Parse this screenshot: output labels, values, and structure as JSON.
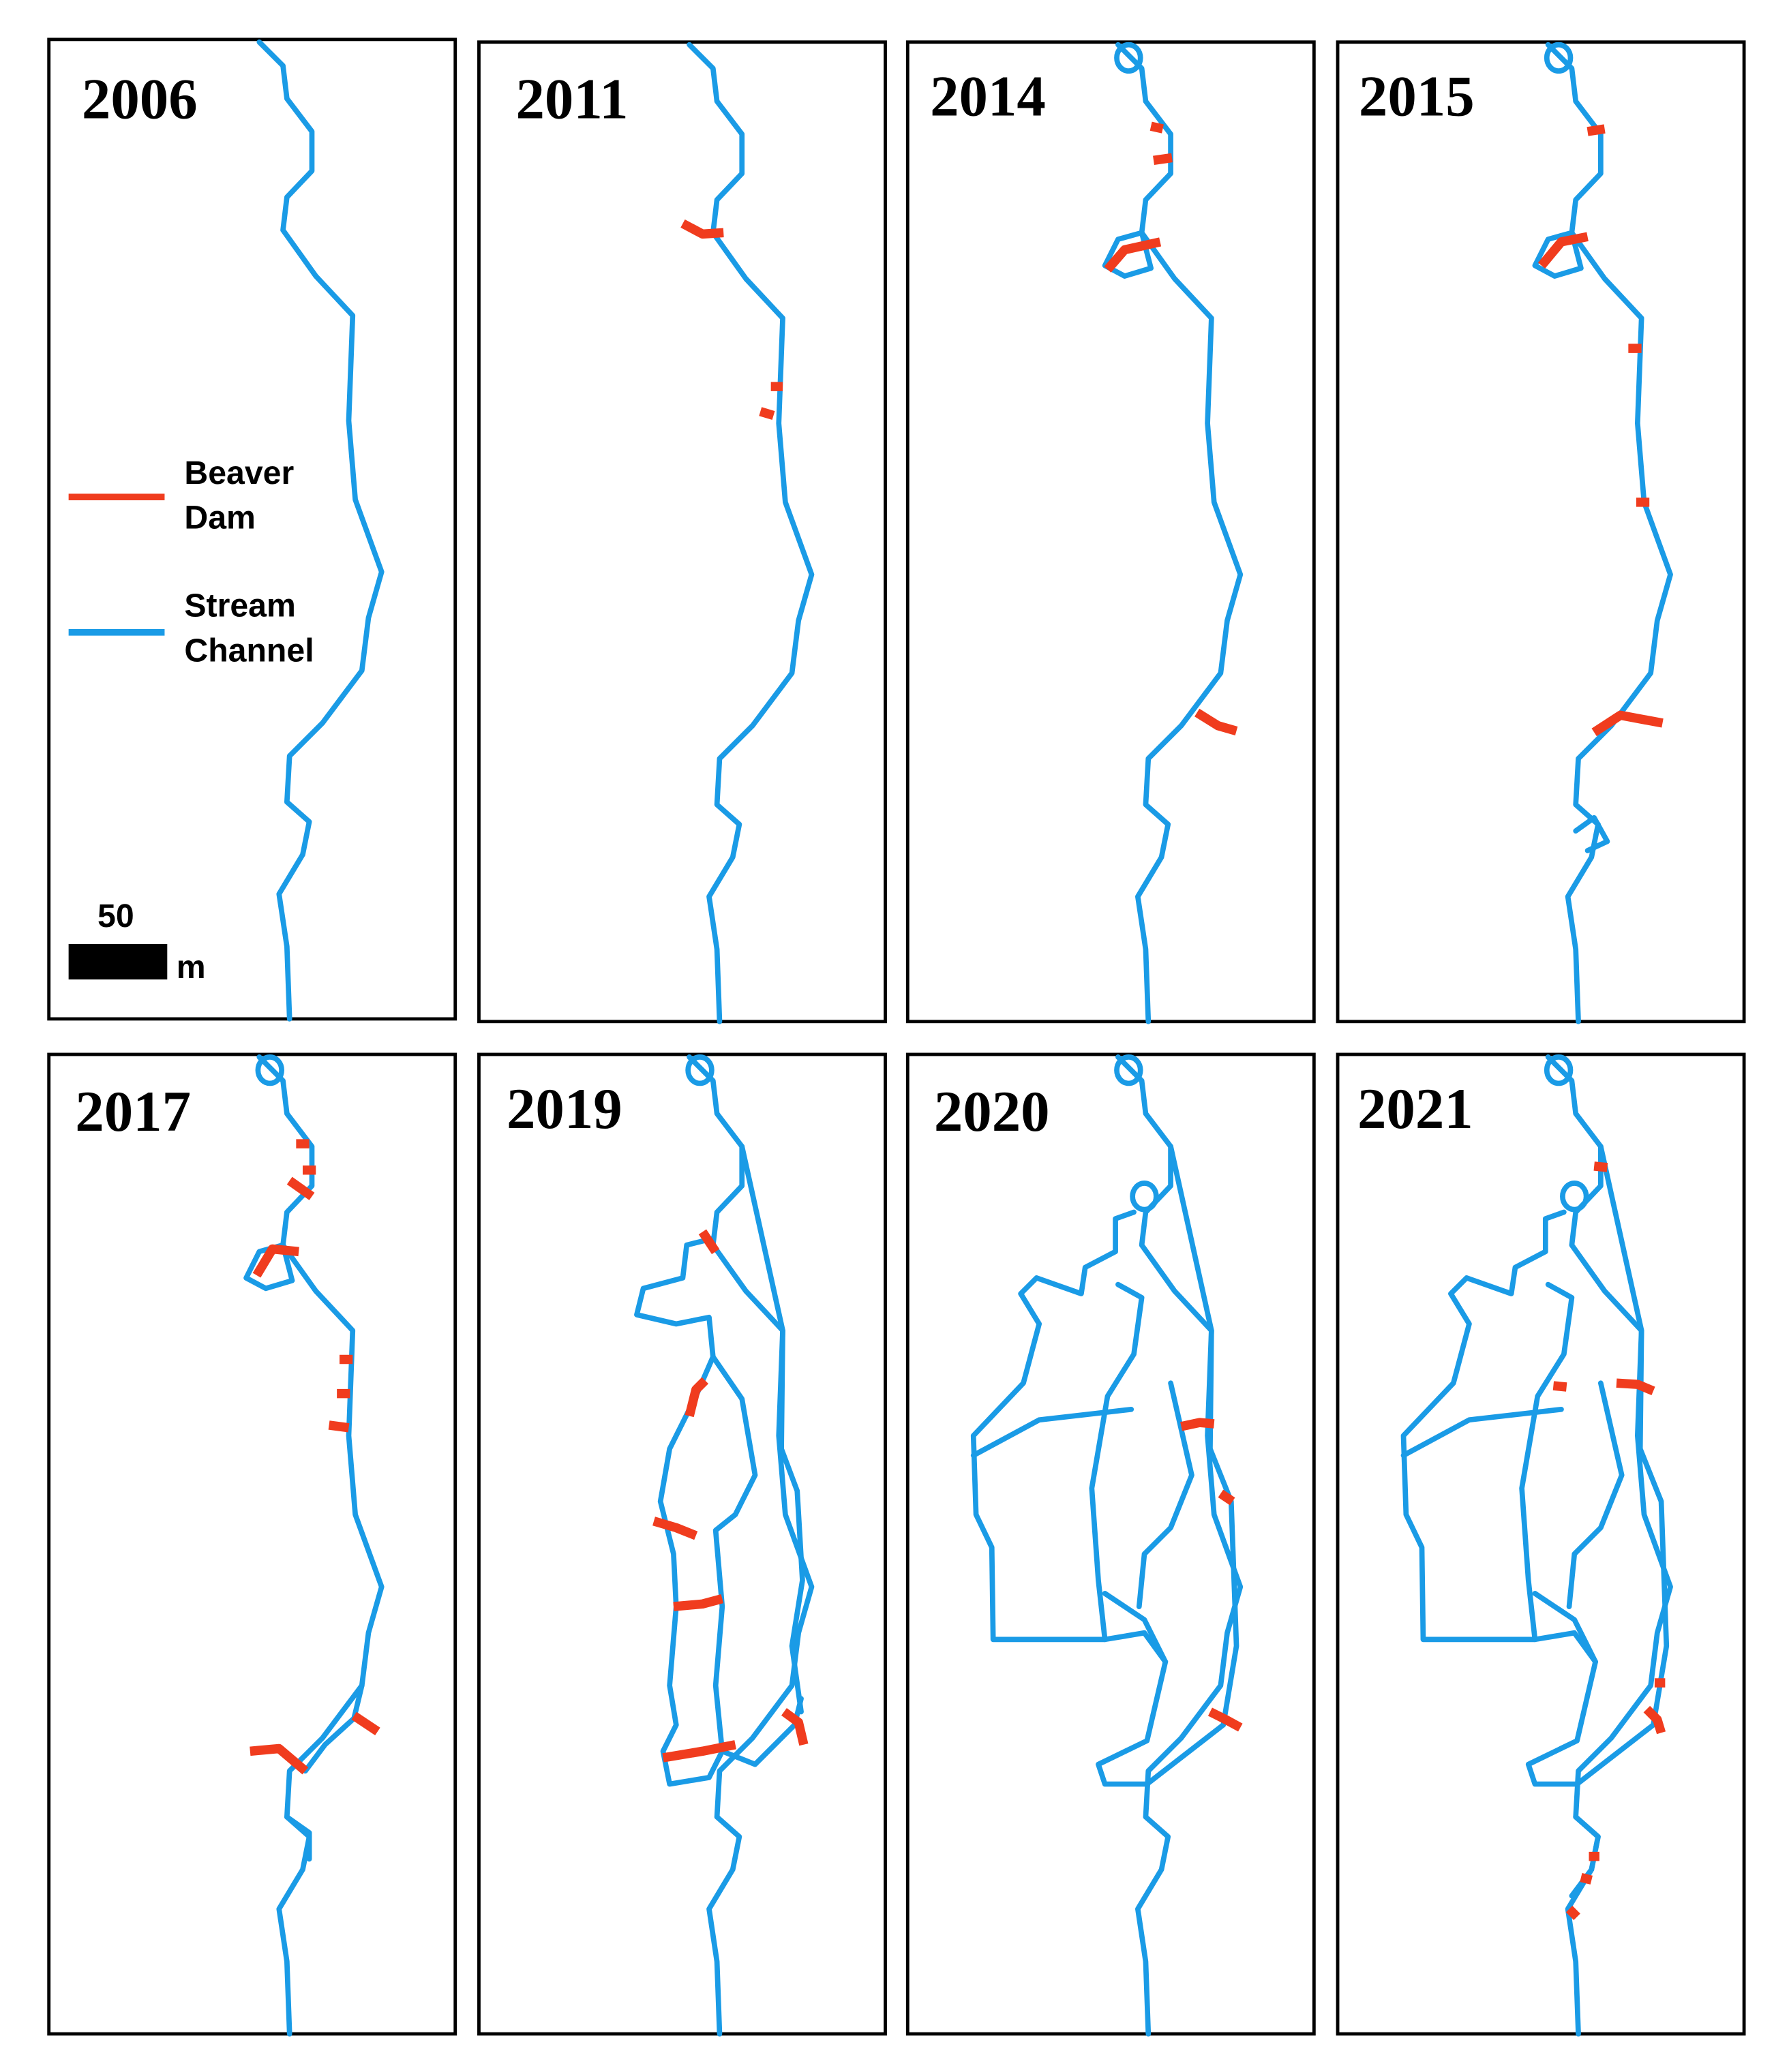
{
  "panels": [
    {
      "year": "2006"
    },
    {
      "year": "2011"
    },
    {
      "year": "2014"
    },
    {
      "year": "2015"
    },
    {
      "year": "2017"
    },
    {
      "year": "2019"
    },
    {
      "year": "2020"
    },
    {
      "year": "2021"
    }
  ],
  "legend": {
    "items": [
      {
        "lines": [
          "Beaver",
          "Dam"
        ]
      },
      {
        "lines": [
          "Stream",
          "Channel"
        ]
      }
    ]
  },
  "scale_bar": {
    "value": "50",
    "unit": "m"
  }
}
